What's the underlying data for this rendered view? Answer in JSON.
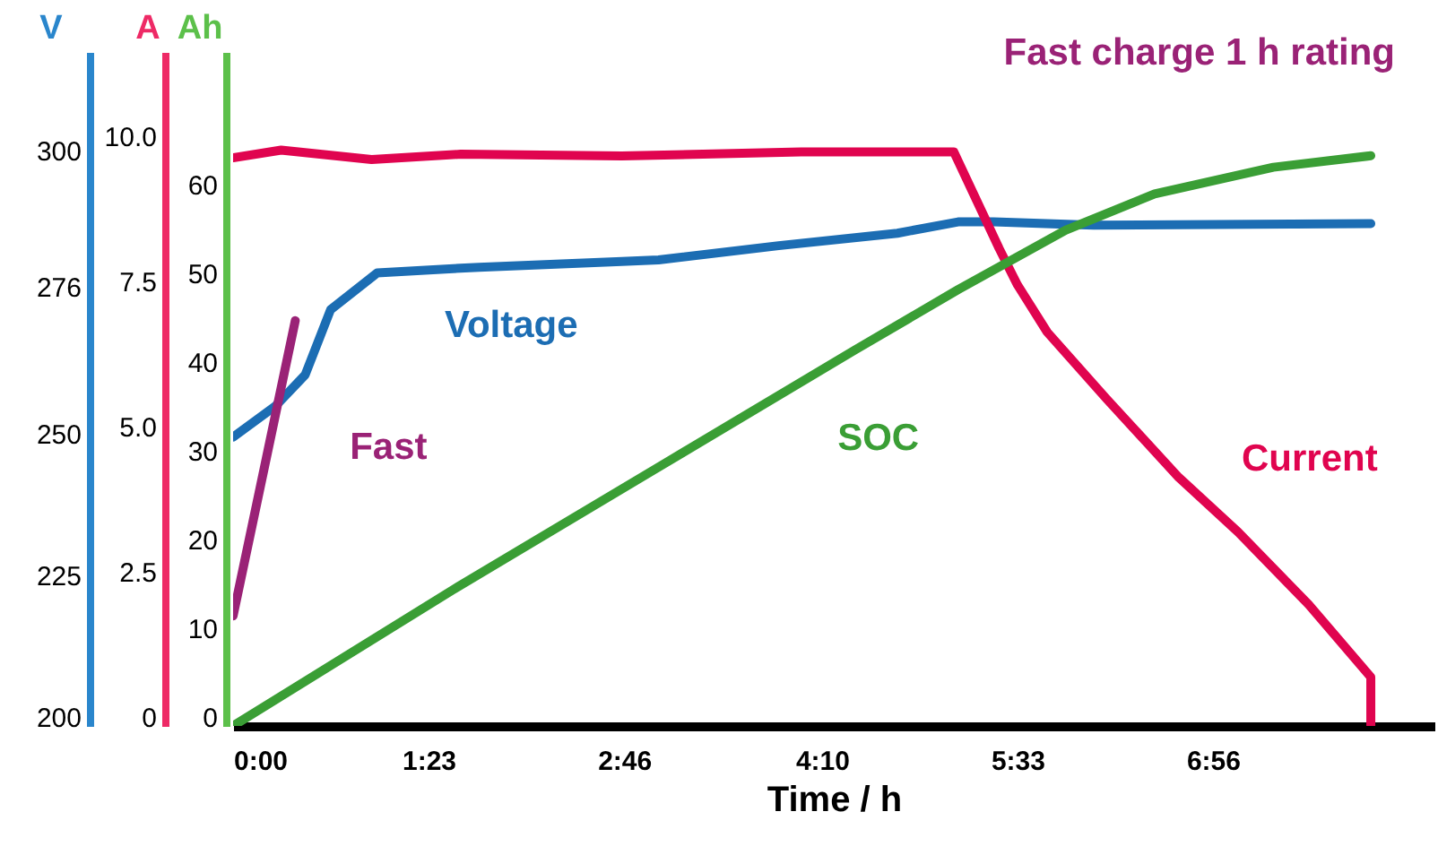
{
  "chart_data": {
    "type": "line",
    "title": "Fast charge 1 h rating",
    "xlabel": "Time / h",
    "ylabel": "V",
    "y2label": "A",
    "y3label": "Ah",
    "xlim": [
      0,
      8.5
    ],
    "xticks": [
      {
        "value": 0,
        "label": "0:00"
      },
      {
        "value": 1.383,
        "label": "1:23"
      },
      {
        "value": 2.767,
        "label": "2:46"
      },
      {
        "value": 4.167,
        "label": "4:10"
      },
      {
        "value": 5.55,
        "label": "5:33"
      },
      {
        "value": 6.933,
        "label": "6:56"
      }
    ],
    "ylim": [
      200,
      319
    ],
    "yticks": [
      200,
      225,
      250,
      276,
      300
    ],
    "y2lim": [
      0,
      11.6
    ],
    "y2ticks": [
      0,
      {
        "value": 2.5,
        "label": "2.5"
      },
      {
        "value": 5,
        "label": "5.0"
      },
      {
        "value": 7.5,
        "label": "7.5"
      },
      {
        "value": 10,
        "label": "10.0"
      }
    ],
    "y3lim": [
      0,
      76
    ],
    "y3ticks": [
      0,
      10,
      20,
      30,
      40,
      50,
      60
    ],
    "grid": false,
    "series": [
      {
        "name": "Voltage",
        "color": "#1c6db3",
        "axis": "y",
        "x": [
          0,
          0.3,
          0.51,
          0.69,
          1.02,
          1.74,
          2.75,
          3.01,
          3.86,
          4.7,
          5.13,
          5.38,
          6.09,
          8.05
        ],
        "values": [
          251,
          256.5,
          262,
          273.5,
          280,
          281,
          282,
          282.3,
          284.8,
          287,
          289,
          289,
          288.4,
          288.7
        ]
      },
      {
        "name": "Current",
        "color": "#e0044f",
        "axis": "y2",
        "x": [
          0,
          0.34,
          0.98,
          1.61,
          2.75,
          4.02,
          5.1,
          5.42,
          5.55,
          5.76,
          6.18,
          6.69,
          7.11,
          7.61,
          8.05,
          8.05
        ],
        "values": [
          9.78,
          9.91,
          9.75,
          9.84,
          9.81,
          9.88,
          9.88,
          8.22,
          7.59,
          6.78,
          5.63,
          4.28,
          3.34,
          2.09,
          0.84,
          0
        ]
      },
      {
        "name": "SOC",
        "color": "#3a9e35",
        "axis": "y3",
        "x": [
          0,
          1.57,
          2.97,
          4.4,
          5.13,
          5.89,
          6.52,
          7.36,
          8.05
        ],
        "values": [
          0,
          15.5,
          28.8,
          42.4,
          49.2,
          55.9,
          60,
          63,
          64.3
        ]
      },
      {
        "name": "Fast",
        "color": "#9a2276",
        "axis": "y3",
        "x": [
          0,
          0.44
        ],
        "values": [
          12.4,
          45.7
        ]
      }
    ]
  }
}
